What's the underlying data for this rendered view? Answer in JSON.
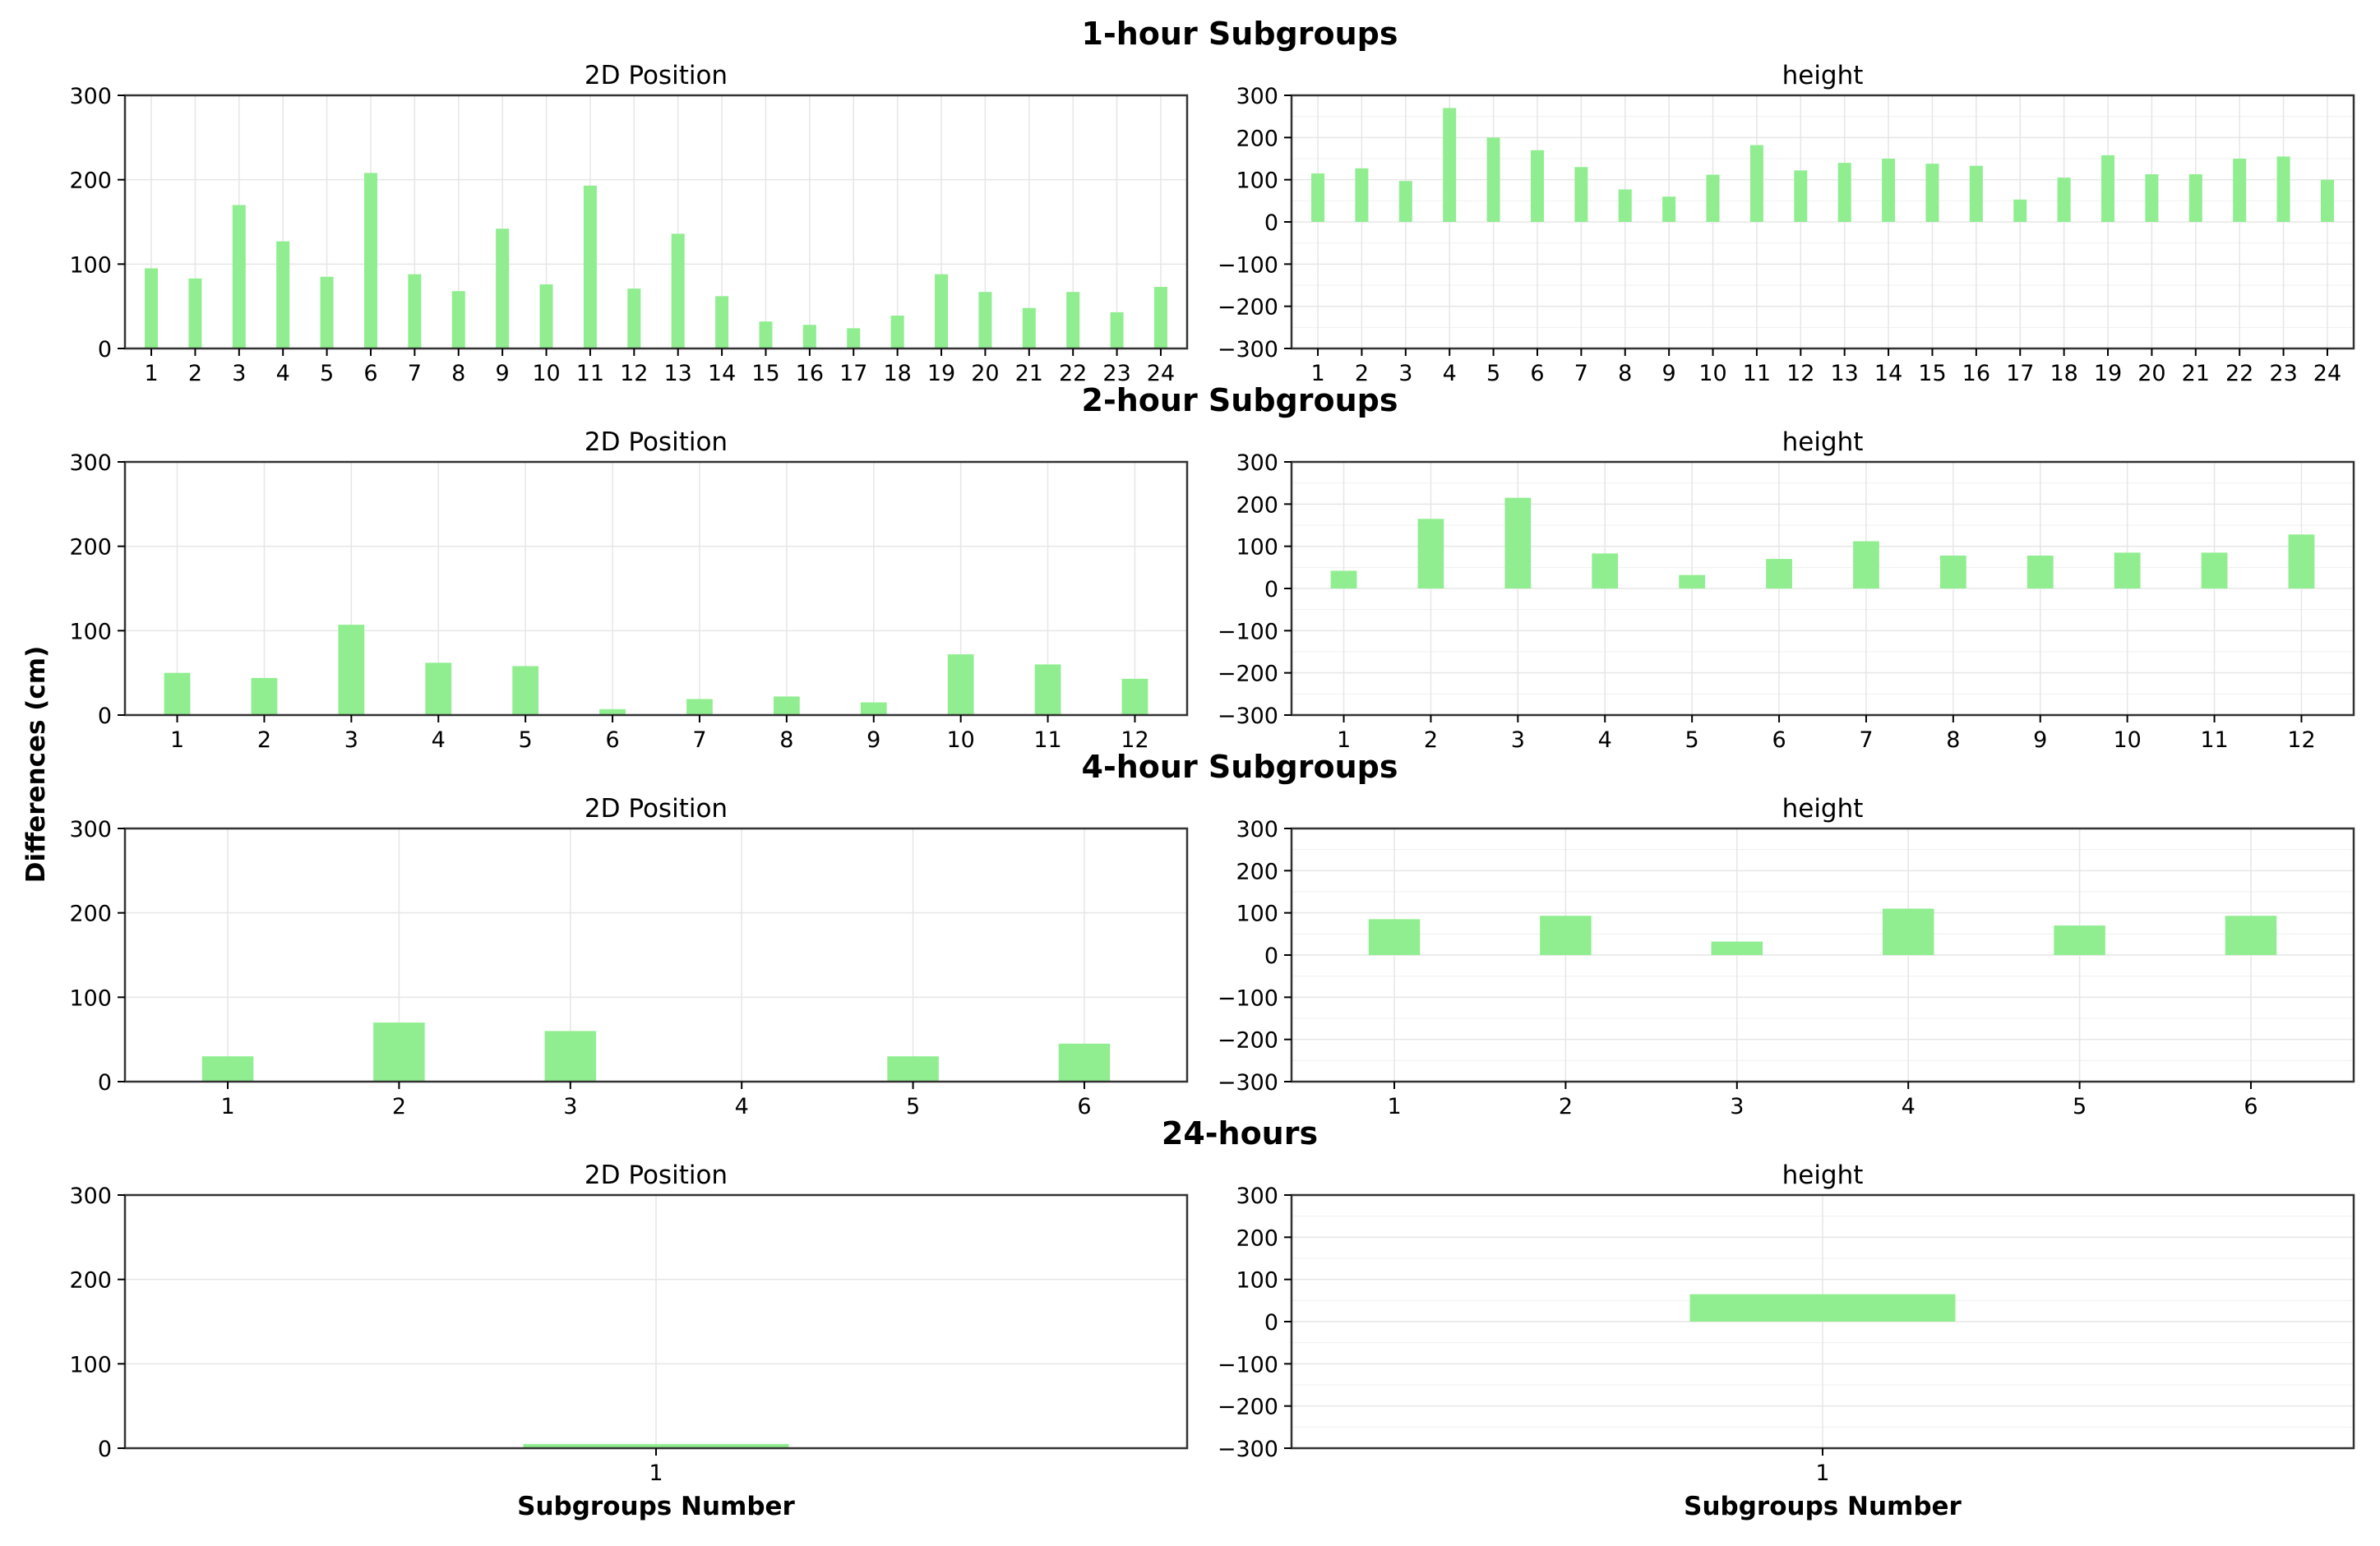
{
  "figure": {
    "ylabel": "Differences (cm)",
    "bar_color": "#90ee90",
    "grid_color": "#e6e6e6",
    "axis_color": "#333333"
  },
  "chart_data": [
    {
      "type": "bar",
      "row_title": "1-hour Subgroups",
      "title": "2D Position",
      "xlabel": "",
      "ylabel": "",
      "categories": [
        "1",
        "2",
        "3",
        "4",
        "5",
        "6",
        "7",
        "8",
        "9",
        "10",
        "11",
        "12",
        "13",
        "14",
        "15",
        "16",
        "17",
        "18",
        "19",
        "20",
        "21",
        "22",
        "23",
        "24"
      ],
      "values": [
        95,
        83,
        170,
        127,
        85,
        208,
        88,
        68,
        142,
        76,
        193,
        71,
        136,
        62,
        32,
        28,
        24,
        39,
        88,
        67,
        48,
        67,
        43,
        73
      ],
      "ylim": [
        0,
        300
      ],
      "yticks": [
        0,
        100,
        200,
        300
      ],
      "ytick_labels": [
        "0",
        "100",
        "200",
        "300"
      ],
      "grid": true
    },
    {
      "type": "bar",
      "row_title": "1-hour Subgroups",
      "title": "height",
      "xlabel": "",
      "ylabel": "",
      "categories": [
        "1",
        "2",
        "3",
        "4",
        "5",
        "6",
        "7",
        "8",
        "9",
        "10",
        "11",
        "12",
        "13",
        "14",
        "15",
        "16",
        "17",
        "18",
        "19",
        "20",
        "21",
        "22",
        "23",
        "24"
      ],
      "values": [
        115,
        127,
        97,
        270,
        200,
        170,
        130,
        77,
        60,
        112,
        182,
        122,
        140,
        150,
        138,
        133,
        53,
        105,
        158,
        113,
        113,
        150,
        155,
        100
      ],
      "ylim": [
        -300,
        300
      ],
      "yticks": [
        -300,
        -200,
        -100,
        0,
        100,
        200,
        300
      ],
      "ytick_labels": [
        "−300",
        "−200",
        "−100",
        "0",
        "100",
        "200",
        "300"
      ],
      "grid": true
    },
    {
      "type": "bar",
      "row_title": "2-hour Subgroups",
      "title": "2D Position",
      "xlabel": "",
      "ylabel": "",
      "categories": [
        "1",
        "2",
        "3",
        "4",
        "5",
        "6",
        "7",
        "8",
        "9",
        "10",
        "11",
        "12"
      ],
      "values": [
        50,
        44,
        107,
        62,
        58,
        7,
        19,
        22,
        15,
        72,
        60,
        43
      ],
      "ylim": [
        0,
        300
      ],
      "yticks": [
        0,
        100,
        200,
        300
      ],
      "ytick_labels": [
        "0",
        "100",
        "200",
        "300"
      ],
      "grid": true
    },
    {
      "type": "bar",
      "row_title": "2-hour Subgroups",
      "title": "height",
      "xlabel": "",
      "ylabel": "",
      "categories": [
        "1",
        "2",
        "3",
        "4",
        "5",
        "6",
        "7",
        "8",
        "9",
        "10",
        "11",
        "12"
      ],
      "values": [
        42,
        165,
        215,
        83,
        32,
        70,
        112,
        78,
        78,
        85,
        85,
        128
      ],
      "ylim": [
        -300,
        300
      ],
      "yticks": [
        -300,
        -200,
        -100,
        0,
        100,
        200,
        300
      ],
      "ytick_labels": [
        "−300",
        "−200",
        "−100",
        "0",
        "100",
        "200",
        "300"
      ],
      "grid": true
    },
    {
      "type": "bar",
      "row_title": "4-hour Subgroups",
      "title": "2D Position",
      "xlabel": "",
      "ylabel": "",
      "categories": [
        "1",
        "2",
        "3",
        "4",
        "5",
        "6"
      ],
      "values": [
        30,
        70,
        60,
        0,
        30,
        45
      ],
      "ylim": [
        0,
        300
      ],
      "yticks": [
        0,
        100,
        200,
        300
      ],
      "ytick_labels": [
        "0",
        "100",
        "200",
        "300"
      ],
      "grid": true
    },
    {
      "type": "bar",
      "row_title": "4-hour Subgroups",
      "title": "height",
      "xlabel": "",
      "ylabel": "",
      "categories": [
        "1",
        "2",
        "3",
        "4",
        "5",
        "6"
      ],
      "values": [
        85,
        93,
        32,
        110,
        70,
        93
      ],
      "ylim": [
        -300,
        300
      ],
      "yticks": [
        -300,
        -200,
        -100,
        0,
        100,
        200,
        300
      ],
      "ytick_labels": [
        "−300",
        "−200",
        "−100",
        "0",
        "100",
        "200",
        "300"
      ],
      "grid": true
    },
    {
      "type": "bar",
      "row_title": "24-hours",
      "title": "2D Position",
      "xlabel": "Subgroups Number",
      "ylabel": "",
      "categories": [
        "1"
      ],
      "values": [
        5
      ],
      "ylim": [
        0,
        300
      ],
      "yticks": [
        0,
        100,
        200,
        300
      ],
      "ytick_labels": [
        "0",
        "100",
        "200",
        "300"
      ],
      "grid": true
    },
    {
      "type": "bar",
      "row_title": "24-hours",
      "title": "height",
      "xlabel": "Subgroups Number",
      "ylabel": "",
      "categories": [
        "1"
      ],
      "values": [
        65
      ],
      "ylim": [
        -300,
        300
      ],
      "yticks": [
        -300,
        -200,
        -100,
        0,
        100,
        200,
        300
      ],
      "ytick_labels": [
        "−300",
        "−200",
        "−100",
        "0",
        "100",
        "200",
        "300"
      ],
      "grid": true
    }
  ]
}
